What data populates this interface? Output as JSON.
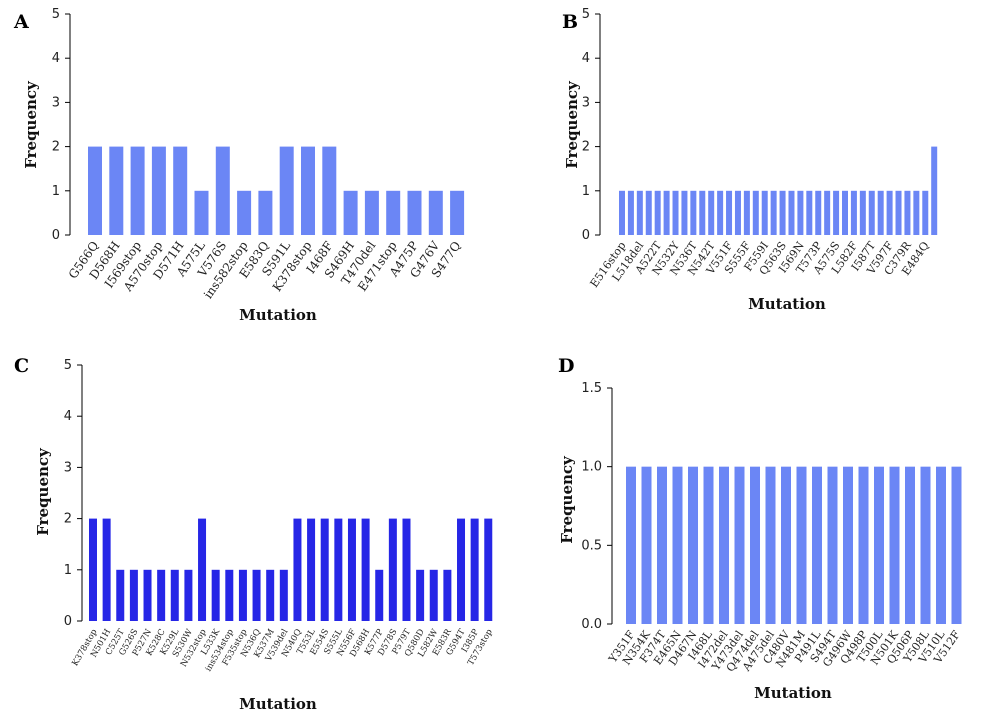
{
  "chart_data": [
    {
      "panel": "A",
      "type": "bar",
      "color": "#6b86f5",
      "xlabel": "Mutation",
      "ylabel": "Frequency",
      "ylim": [
        0,
        5
      ],
      "yticks": [
        "0",
        "1",
        "2",
        "3",
        "4",
        "5"
      ],
      "categories": [
        "G566Q",
        "D568H",
        "I569stop",
        "A570stop",
        "D571H",
        "A575L",
        "V576S",
        "ins582stop",
        "E583Q",
        "S591L",
        "K378stop",
        "I468F",
        "S469H",
        "T470del",
        "E471stop",
        "A475P",
        "G476V",
        "S477Q"
      ],
      "values": [
        2,
        2,
        2,
        2,
        2,
        1,
        2,
        1,
        1,
        2,
        2,
        2,
        1,
        1,
        1,
        1,
        1,
        1
      ]
    },
    {
      "panel": "B",
      "type": "bar",
      "color": "#6b86f5",
      "xlabel": "Mutation",
      "ylabel": "Frequency",
      "ylim": [
        0,
        5
      ],
      "yticks": [
        "0",
        "1",
        "2",
        "3",
        "4",
        "5"
      ],
      "categories": [
        "E516stop",
        "",
        "L518del",
        "",
        "A522T",
        "",
        "N532Y",
        "",
        "N536T",
        "",
        "N542T",
        "",
        "V551F",
        "",
        "S555F",
        "",
        "F559I",
        "",
        "Q563S",
        "",
        "I569N",
        "",
        "T573P",
        "",
        "A575S",
        "",
        "L582F",
        "",
        "I587T",
        "",
        "V597F",
        "",
        "C379R",
        "",
        "E484Q",
        ""
      ],
      "values": [
        1,
        1,
        1,
        1,
        1,
        1,
        1,
        1,
        1,
        1,
        1,
        1,
        1,
        1,
        1,
        1,
        1,
        1,
        1,
        1,
        1,
        1,
        1,
        1,
        1,
        1,
        1,
        1,
        1,
        1,
        1,
        1,
        1,
        1,
        1,
        2
      ]
    },
    {
      "panel": "C",
      "type": "bar",
      "color": "#2626e6",
      "xlabel": "Mutation",
      "ylabel": "Frequency",
      "ylim": [
        0,
        5
      ],
      "yticks": [
        "0",
        "1",
        "2",
        "3",
        "4",
        "5"
      ],
      "categories": [
        "K378stop",
        "N501H",
        "C525T",
        "G526S",
        "P527N",
        "K528C",
        "K529L",
        "S530W",
        "N532stop",
        "L533K",
        "ins534stop",
        "F535stop",
        "N536Q",
        "K537M",
        "V539del",
        "N540Q",
        "T553L",
        "E554S",
        "S555L",
        "N556F",
        "D568H",
        "K577P",
        "D578S",
        "P579T",
        "Q580D",
        "L582W",
        "E583R",
        "G594T",
        "I385P",
        "T573stop"
      ],
      "values": [
        2,
        2,
        1,
        1,
        1,
        1,
        1,
        1,
        2,
        1,
        1,
        1,
        1,
        1,
        1,
        2,
        2,
        2,
        2,
        2,
        2,
        1,
        2,
        2,
        1,
        1,
        1,
        2,
        2,
        2
      ]
    },
    {
      "panel": "D",
      "type": "bar",
      "color": "#6b86f5",
      "xlabel": "Mutation",
      "ylabel": "Frequency",
      "ylim": [
        0,
        1.5
      ],
      "yticks": [
        "0.0",
        "0.5",
        "1.0",
        "1.5"
      ],
      "categories": [
        "Y351F",
        "N354K",
        "F374T",
        "E465N",
        "D467N",
        "I468L",
        "I472del",
        "Y473del",
        "Q474del",
        "A475del",
        "C480V",
        "N481M",
        "P491L",
        "S494T",
        "G496W",
        "Q498P",
        "T500L",
        "N501K",
        "Q506P",
        "Y508L",
        "V510L",
        "V512F"
      ],
      "values": [
        1,
        1,
        1,
        1,
        1,
        1,
        1,
        1,
        1,
        1,
        1,
        1,
        1,
        1,
        1,
        1,
        1,
        1,
        1,
        1,
        1,
        1
      ]
    }
  ]
}
